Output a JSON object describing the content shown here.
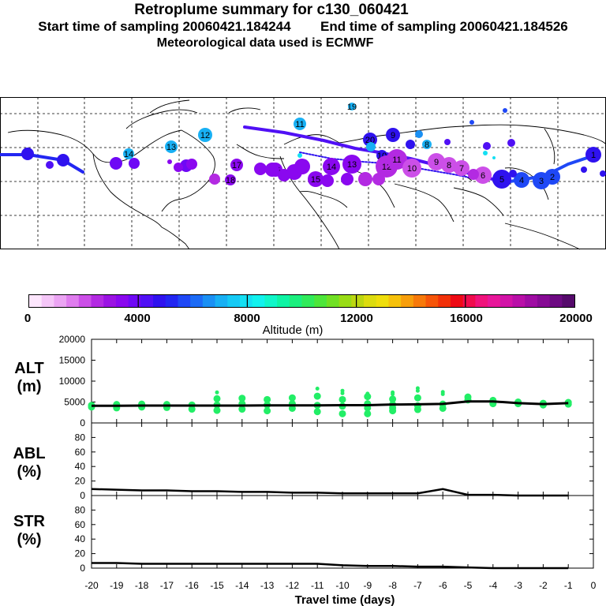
{
  "header": {
    "title": "Retroplume summary for c130_060421",
    "start_label": "Start time of sampling 20060421.184244",
    "end_label": "End time of sampling 20060421.184526",
    "met_label": "Meteorological data used is ECMWF"
  },
  "colorbar": {
    "ticks": [
      "0",
      "4000",
      "8000",
      "12000",
      "16000",
      "20000"
    ],
    "label": "Altitude (m)",
    "colors": [
      "#fde6fd",
      "#f5c6f8",
      "#eba4f3",
      "#df7cee",
      "#cc4fe8",
      "#b32ae2",
      "#9b13e3",
      "#8a08ef",
      "#6e08f5",
      "#5010f5",
      "#2f12ef",
      "#2226f2",
      "#1f48f6",
      "#1c6bf6",
      "#1a90f4",
      "#18b0f4",
      "#16caf5",
      "#14e0f3",
      "#12f2ee",
      "#10f6c9",
      "#0ef4a4",
      "#1bef7e",
      "#30eb5a",
      "#4de63a",
      "#70e024",
      "#99dc16",
      "#bcd711",
      "#dcdc0f",
      "#efde0c",
      "#f6c10b",
      "#f79e0b",
      "#f7790a",
      "#f65509",
      "#f23109",
      "#ee0a14",
      "#f00c4d",
      "#f0137c",
      "#e8179a",
      "#d213a7",
      "#b90fa8",
      "#9f0ca3",
      "#860a94",
      "#6d0a82",
      "#550a6b"
    ]
  },
  "map_labels": [
    {
      "t": "19",
      "c": "#18b0f4"
    },
    {
      "t": "11",
      "c": "#18b0f4"
    },
    {
      "t": "12",
      "c": "#18b0f4"
    },
    {
      "t": "13",
      "c": "#18b0f4"
    },
    {
      "t": "14",
      "c": "#18b0f4"
    },
    {
      "t": "20",
      "c": "#2f12ef"
    },
    {
      "t": "10",
      "c": "#2f12ef"
    },
    {
      "t": "9",
      "c": "#2f12ef"
    },
    {
      "t": "8",
      "c": "#18b0f4"
    },
    {
      "t": "17",
      "c": "#8a08ef"
    },
    {
      "t": "18",
      "c": "#8a08ef"
    },
    {
      "t": "16",
      "c": "#8a08ef"
    },
    {
      "t": "15",
      "c": "#8a08ef"
    },
    {
      "t": "14",
      "c": "#8a08ef"
    },
    {
      "t": "13",
      "c": "#8a08ef"
    },
    {
      "t": "12",
      "c": "#b32ae2"
    },
    {
      "t": "11",
      "c": "#b32ae2"
    },
    {
      "t": "10",
      "c": "#cc4fe8"
    },
    {
      "t": "9",
      "c": "#cc4fe8"
    },
    {
      "t": "8",
      "c": "#cc4fe8"
    },
    {
      "t": "7",
      "c": "#cc4fe8"
    },
    {
      "t": "6",
      "c": "#cc4fe8"
    },
    {
      "t": "5",
      "c": "#2f12ef"
    },
    {
      "t": "4",
      "c": "#1f48f6"
    },
    {
      "t": "3",
      "c": "#1f48f6"
    },
    {
      "t": "2",
      "c": "#1f48f6"
    },
    {
      "t": "1",
      "c": "#2f12ef"
    }
  ],
  "chart_data": [
    {
      "type": "scatter",
      "panel": "ALT",
      "ylabel": "ALT (m)",
      "ylim": [
        0,
        20000
      ],
      "yticks": [
        "0",
        "5000",
        "10000",
        "15000",
        "20000"
      ],
      "xlim": [
        -20,
        0
      ],
      "x": [
        -20,
        -19,
        -18,
        -17,
        -16,
        -15,
        -14,
        -13,
        -12,
        -11,
        -10,
        -9,
        -8,
        -7,
        -6,
        -5,
        -4,
        -3,
        -2,
        -1
      ],
      "median_line": [
        4100,
        4100,
        4150,
        4150,
        4150,
        4150,
        4150,
        4200,
        4200,
        4200,
        4250,
        4250,
        4400,
        4450,
        4550,
        5150,
        5150,
        4750,
        4500,
        4750
      ],
      "points": [
        [
          -20,
          3800
        ],
        [
          -20,
          4200
        ],
        [
          -19,
          3600
        ],
        [
          -19,
          4400
        ],
        [
          -18,
          3800
        ],
        [
          -18,
          4500
        ],
        [
          -17,
          3700
        ],
        [
          -17,
          4400
        ],
        [
          -16,
          3300
        ],
        [
          -16,
          4300
        ],
        [
          -15,
          3000
        ],
        [
          -15,
          4300
        ],
        [
          -15,
          5800
        ],
        [
          -15,
          7300
        ],
        [
          -14,
          3300
        ],
        [
          -14,
          4600
        ],
        [
          -14,
          5900
        ],
        [
          -13,
          2900
        ],
        [
          -13,
          4300
        ],
        [
          -13,
          5600
        ],
        [
          -12,
          3500
        ],
        [
          -12,
          4600
        ],
        [
          -12,
          6000
        ],
        [
          -11,
          2700
        ],
        [
          -11,
          4200
        ],
        [
          -11,
          6400
        ],
        [
          -11,
          8200
        ],
        [
          -10,
          2200
        ],
        [
          -10,
          4000
        ],
        [
          -10,
          5600
        ],
        [
          -10,
          7100
        ],
        [
          -10,
          7700
        ],
        [
          -9,
          2200
        ],
        [
          -9,
          3600
        ],
        [
          -9,
          4600
        ],
        [
          -9,
          6300
        ],
        [
          -9,
          7000
        ],
        [
          -8,
          2900
        ],
        [
          -8,
          3600
        ],
        [
          -8,
          4400
        ],
        [
          -8,
          5700
        ],
        [
          -8,
          6900
        ],
        [
          -8,
          7300
        ],
        [
          -7,
          3200
        ],
        [
          -7,
          4100
        ],
        [
          -7,
          6000
        ],
        [
          -7,
          7700
        ],
        [
          -7,
          8300
        ],
        [
          -6,
          3500
        ],
        [
          -6,
          4500
        ],
        [
          -6,
          6900
        ],
        [
          -6,
          7400
        ],
        [
          -5,
          5500
        ],
        [
          -5,
          6200
        ],
        [
          -4,
          4600
        ],
        [
          -4,
          5400
        ],
        [
          -3,
          4600
        ],
        [
          -3,
          5000
        ],
        [
          -2,
          4300
        ],
        [
          -2,
          4700
        ],
        [
          -1,
          4500
        ],
        [
          -1,
          4900
        ]
      ],
      "point_color": "#22ee66"
    },
    {
      "type": "line",
      "panel": "ABL",
      "ylabel": "ABL (%)",
      "ylim": [
        0,
        100
      ],
      "yticks": [
        "0",
        "20",
        "40",
        "60",
        "80"
      ],
      "x": [
        -20,
        -19,
        -18,
        -17,
        -16,
        -15,
        -14,
        -13,
        -12,
        -11,
        -10,
        -9,
        -8,
        -7,
        -6,
        -5,
        -4,
        -3,
        -2,
        -1
      ],
      "values": [
        9,
        8,
        7,
        7,
        6,
        6,
        5,
        5,
        4,
        4,
        3,
        3,
        3,
        3,
        9,
        1,
        1,
        0,
        0,
        0
      ]
    },
    {
      "type": "line",
      "panel": "STR",
      "ylabel": "STR (%)",
      "ylim": [
        0,
        100
      ],
      "yticks": [
        "0",
        "20",
        "40",
        "60",
        "80"
      ],
      "x": [
        -20,
        -19,
        -18,
        -17,
        -16,
        -15,
        -14,
        -13,
        -12,
        -11,
        -10,
        -9,
        -8,
        -7,
        -6,
        -5,
        -4,
        -3,
        -2,
        -1
      ],
      "values": [
        7,
        7,
        6,
        6,
        6,
        6,
        6,
        6,
        6,
        6,
        4,
        3,
        3,
        2,
        2,
        1,
        0,
        0,
        0,
        0
      ]
    }
  ],
  "axis": {
    "xticks": [
      "-20",
      "-19",
      "-18",
      "-17",
      "-16",
      "-15",
      "-14",
      "-13",
      "-12",
      "-11",
      "-10",
      "-9",
      "-8",
      "-7",
      "-6",
      "-5",
      "-4",
      "-3",
      "-2",
      "-1",
      "0"
    ],
    "xlabel": "Travel time (days)"
  },
  "panel_labels": {
    "alt_line1": "ALT",
    "alt_line2": "(m)",
    "abl_line1": "ABL",
    "abl_line2": "(%)",
    "str_line1": "STR",
    "str_line2": "(%)"
  }
}
